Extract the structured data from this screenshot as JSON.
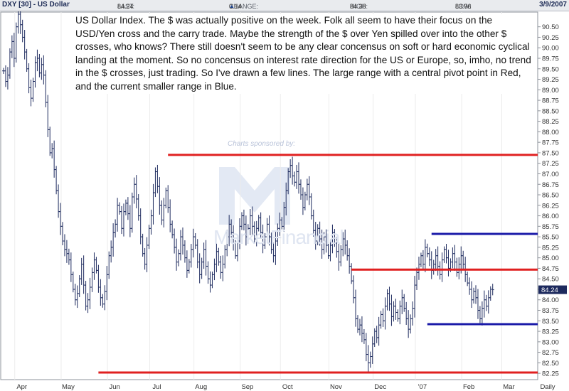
{
  "header": {
    "symbol": "DXY [30] - US Dollar",
    "last_label": "LAST:",
    "last_value": "84.24",
    "change_label": "CHANGE:",
    "change_value": "0.14",
    "high_label": "HIGH:",
    "high_value": "84.38",
    "low_label": "LOW:",
    "low_value": "83.96",
    "date": "3/9/2007"
  },
  "annotation": "US Dollar Index. The $ was actually positive on the week. Folk all seem to have their focus on the USD/Yen cross and the carry trade. Maybe the strength of the $ over Yen spilled over into the other $ crosses, who knows? There still doesn't seem to be any clear concensus on soft or hard economic cyclical landing at the moment. So no concensus on interest rate direction for the US or Europe, so, imho, no trend in the $ crosses, just trading. So I've drawn a few lines. The large range with a central pivot point in Red, and the current smaller range in Blue.",
  "watermark": {
    "sponsor_text": "Charts sponsored by:",
    "brand_text": "MarketFinancial"
  },
  "colors": {
    "bars": "#1d2a5e",
    "red_lines": "#e02020",
    "blue_lines": "#1a1aa8",
    "last_badge": "#1d2a5e"
  },
  "chart_data": {
    "type": "ohlc",
    "period": "Daily",
    "last_price_label": "84.24",
    "ylim": [
      82.1,
      90.85
    ],
    "yticks": [
      "82.25",
      "82.50",
      "82.75",
      "83.00",
      "83.25",
      "83.50",
      "83.75",
      "84.00",
      "84.25",
      "84.50",
      "84.75",
      "85.00",
      "85.25",
      "85.50",
      "85.75",
      "86.00",
      "86.25",
      "86.50",
      "86.75",
      "87.00",
      "87.25",
      "87.50",
      "87.75",
      "88.00",
      "88.25",
      "88.50",
      "88.75",
      "89.00",
      "89.25",
      "89.50",
      "89.75",
      "90.00",
      "90.25",
      "90.50"
    ],
    "xticks": [
      {
        "label": "Apr",
        "i": 8
      },
      {
        "label": "May",
        "i": 30
      },
      {
        "label": "Jun",
        "i": 52
      },
      {
        "label": "Jul",
        "i": 72
      },
      {
        "label": "Aug",
        "i": 93
      },
      {
        "label": "Sep",
        "i": 115
      },
      {
        "label": "Oct",
        "i": 134
      },
      {
        "label": "Nov",
        "i": 157
      },
      {
        "label": "Dec",
        "i": 178
      },
      {
        "label": "'07",
        "i": 198
      },
      {
        "label": "Feb",
        "i": 220
      },
      {
        "label": "Mar",
        "i": 239
      },
      {
        "label": "Daily",
        "i": 252
      }
    ],
    "closes": [
      89.45,
      89.2,
      89.35,
      89.9,
      90.15,
      89.75,
      90.5,
      90.8,
      90.55,
      90.25,
      89.9,
      89.5,
      89.05,
      88.8,
      89.2,
      89.65,
      89.75,
      89.4,
      89.6,
      89.35,
      88.7,
      88.05,
      87.5,
      87.6,
      87.1,
      86.6,
      86.1,
      85.75,
      85.4,
      85.2,
      85.1,
      84.95,
      84.6,
      84.25,
      84.0,
      84.15,
      84.5,
      84.85,
      84.35,
      83.85,
      84.0,
      84.3,
      84.65,
      84.95,
      84.7,
      84.3,
      84.05,
      83.9,
      84.2,
      84.6,
      85.05,
      85.25,
      85.6,
      85.8,
      86.25,
      86.1,
      85.7,
      86.1,
      86.3,
      86.05,
      85.7,
      86.45,
      86.75,
      86.4,
      86.0,
      85.5,
      85.1,
      84.85,
      85.3,
      85.7,
      86.0,
      86.55,
      87.05,
      86.7,
      86.25,
      85.9,
      86.25,
      86.6,
      86.2,
      85.8,
      85.55,
      85.25,
      84.9,
      85.1,
      85.5,
      85.3,
      85.0,
      84.7,
      84.9,
      85.2,
      85.5,
      85.3,
      84.9,
      84.6,
      84.9,
      85.2,
      84.8,
      84.5,
      84.35,
      84.6,
      84.85,
      85.15,
      84.9,
      84.65,
      84.85,
      85.2,
      85.5,
      85.8,
      85.6,
      85.35,
      85.05,
      85.4,
      85.75,
      86.0,
      85.8,
      85.5,
      85.7,
      86.0,
      85.75,
      85.45,
      85.7,
      85.95,
      85.6,
      85.3,
      85.5,
      85.8,
      85.5,
      85.2,
      85.05,
      85.4,
      85.7,
      85.9,
      85.75,
      86.2,
      86.6,
      87.05,
      87.2,
      86.95,
      86.8,
      87.05,
      86.75,
      86.5,
      86.2,
      86.5,
      86.75,
      86.45,
      86.0,
      85.65,
      85.4,
      85.7,
      85.45,
      85.2,
      85.5,
      85.3,
      85.05,
      85.3,
      85.6,
      85.35,
      85.15,
      84.9,
      85.2,
      85.45,
      85.3,
      85.05,
      84.8,
      84.45,
      84.05,
      83.55,
      83.3,
      83.4,
      83.2,
      83.05,
      82.7,
      82.5,
      82.65,
      82.95,
      83.25,
      83.1,
      83.4,
      83.65,
      83.5,
      83.85,
      84.15,
      83.9,
      83.6,
      83.85,
      83.7,
      83.55,
      83.85,
      84.05,
      83.8,
      83.55,
      83.3,
      83.55,
      83.8,
      84.35,
      84.65,
      84.85,
      85.05,
      84.85,
      85.25,
      85.1,
      84.95,
      84.7,
      84.85,
      85.05,
      84.8,
      84.6,
      84.95,
      85.2,
      85.0,
      84.75,
      84.9,
      85.1,
      84.9,
      84.65,
      84.85,
      85.05,
      84.85,
      84.6,
      84.4,
      84.25,
      84.0,
      84.2,
      84.05,
      83.75,
      83.55,
      83.8,
      84.0,
      83.85,
      84.05,
      84.25,
      84.24
    ],
    "red_lines": [
      {
        "label": "range top",
        "y": 87.45,
        "from_i": 78,
        "to_i": 253
      },
      {
        "label": "central pivot",
        "y": 84.72,
        "from_i": 165,
        "to_i": 253
      },
      {
        "label": "range bottom",
        "y": 82.27,
        "from_i": 45,
        "to_i": 253
      }
    ],
    "blue_lines": [
      {
        "label": "current range top",
        "y": 85.57,
        "from_i": 203,
        "to_i": 253
      },
      {
        "label": "current range bottom",
        "y": 83.42,
        "from_i": 201,
        "to_i": 253
      }
    ]
  }
}
